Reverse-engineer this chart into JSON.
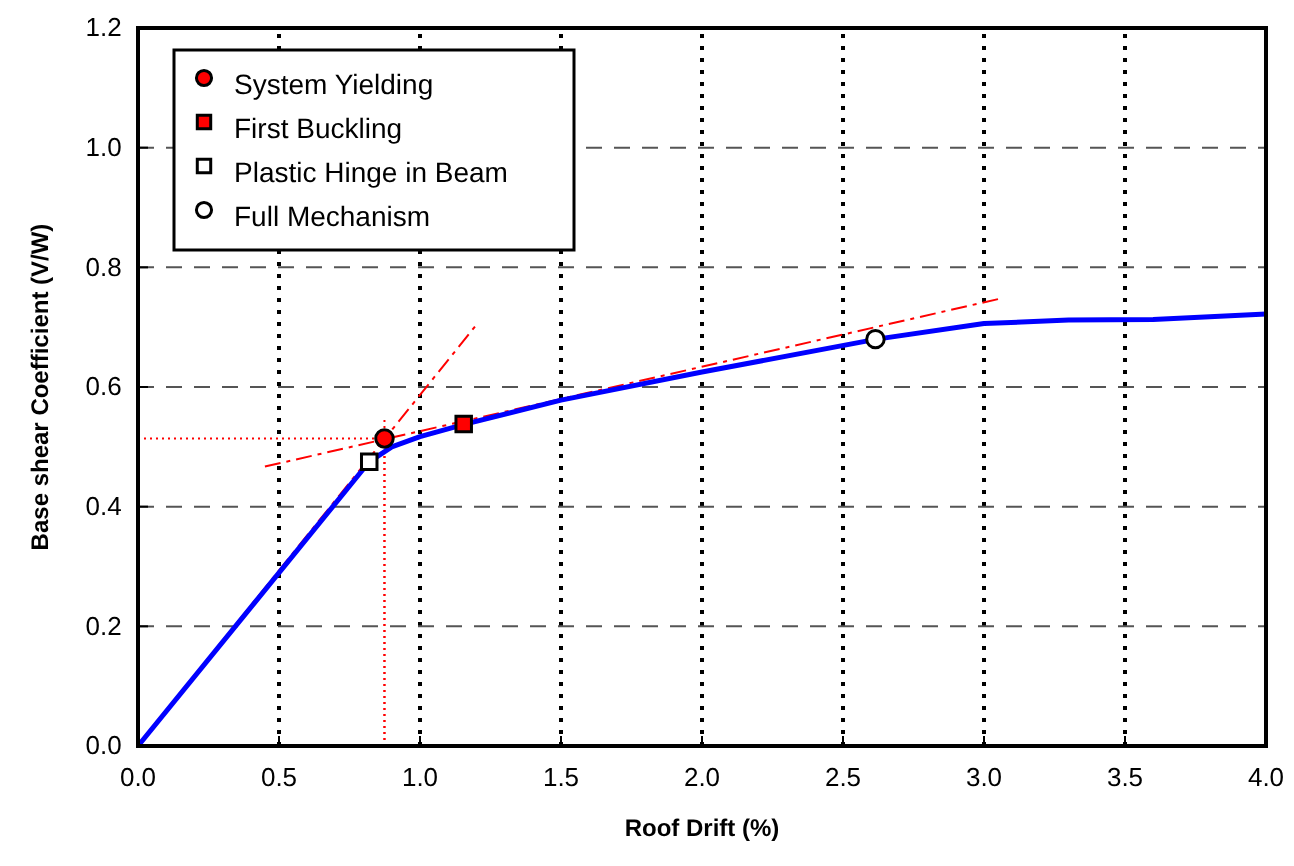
{
  "chart_data": {
    "type": "line",
    "xlabel": "Roof Drift (%)",
    "ylabel": "Base shear Coefficient (V/W)",
    "xlim": [
      0,
      4
    ],
    "ylim": [
      0,
      1.2
    ],
    "xticks": [
      {
        "value": 0,
        "label": "0.0"
      },
      {
        "value": 0.5,
        "label": "0.5"
      },
      {
        "value": 1,
        "label": "1.0"
      },
      {
        "value": 1.5,
        "label": "1.5"
      },
      {
        "value": 2,
        "label": "2.0"
      },
      {
        "value": 2.5,
        "label": "2.5"
      },
      {
        "value": 3,
        "label": "3.0"
      },
      {
        "value": 3.5,
        "label": "3.5"
      },
      {
        "value": 4,
        "label": "4.0"
      }
    ],
    "yticks": [
      {
        "value": 0,
        "label": "0.0"
      },
      {
        "value": 0.2,
        "label": "0.2"
      },
      {
        "value": 0.4,
        "label": "0.4"
      },
      {
        "value": 0.6,
        "label": "0.6"
      },
      {
        "value": 0.8,
        "label": "0.8"
      },
      {
        "value": 1,
        "label": "1.0"
      },
      {
        "value": 1.2,
        "label": "1.2"
      }
    ],
    "grid": true,
    "legend": "top left",
    "series": [
      {
        "color": "#ff0000",
        "line_style": "dotted",
        "x": [
          0,
          0.874,
          0.874
        ],
        "values": [
          0.514,
          0.514,
          0
        ]
      },
      {
        "color": "#ff0000",
        "line_style": "dotted",
        "x": [
          0.874,
          0.874
        ],
        "values": [
          0,
          0.55
        ]
      },
      {
        "color": "#ff0000",
        "line_style": "dashed",
        "x": [
          0,
          1.2
        ],
        "values": [
          0,
          0.704
        ]
      },
      {
        "color": "#ff0000",
        "line_style": "dashed",
        "x": [
          0.45,
          3.06
        ],
        "values": [
          0.467,
          0.748
        ]
      },
      {
        "color": "#0000ff",
        "line_style": "solid",
        "x": [
          0,
          0.82,
          0.9,
          1.0,
          1.16,
          1.5,
          2.0,
          2.62,
          3.0,
          3.3,
          3.6,
          4.0
        ],
        "values": [
          0,
          0.475,
          0.5,
          0.517,
          0.538,
          0.578,
          0.625,
          0.68,
          0.706,
          0.712,
          0.713,
          0.722
        ]
      },
      {
        "type": "scatter",
        "name": "System Yielding",
        "marker": "circle",
        "color": "#ff0000",
        "x": [
          0.874
        ],
        "values": [
          0.514
        ]
      },
      {
        "type": "scatter",
        "name": "First Buckling",
        "marker": "square",
        "color": "#ff0000",
        "x": [
          1.155
        ],
        "values": [
          0.538
        ]
      },
      {
        "type": "scatter",
        "name": "Plastic Hinge in Beam",
        "marker": "square",
        "color": "#ffffff",
        "x": [
          0.82
        ],
        "values": [
          0.475
        ]
      },
      {
        "type": "scatter",
        "name": "Full Mechanism",
        "marker": "circle",
        "color": "#ffffff",
        "x": [
          2.615
        ],
        "values": [
          0.68
        ]
      }
    ]
  }
}
